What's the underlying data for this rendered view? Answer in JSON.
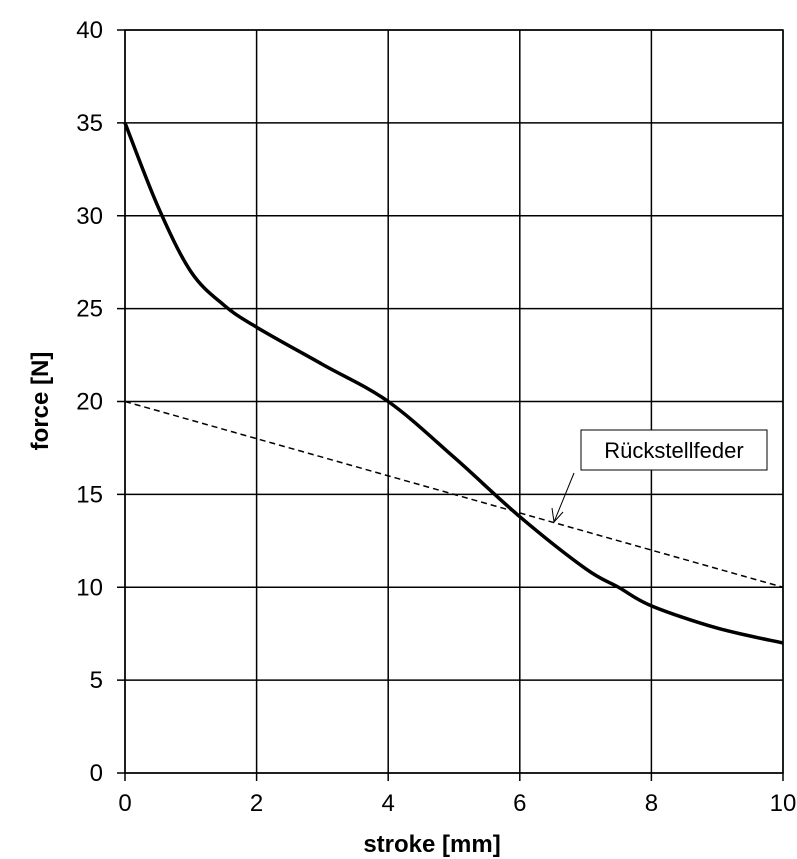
{
  "chart_data": {
    "type": "line",
    "title": "",
    "xlabel": "stroke [mm]",
    "ylabel": "force [N]",
    "xlim": [
      0,
      10
    ],
    "ylim": [
      0,
      40
    ],
    "x_ticks": [
      0,
      2,
      4,
      6,
      8,
      10
    ],
    "y_ticks": [
      0,
      5,
      10,
      15,
      20,
      25,
      30,
      35,
      40
    ],
    "x_tick_labels": [
      "0",
      "2",
      "4",
      "6",
      "8",
      "10"
    ],
    "y_tick_labels": [
      "0",
      "5",
      "10",
      "15",
      "20",
      "25",
      "30",
      "35",
      "40"
    ],
    "grid": true,
    "series": [
      {
        "style": "solid",
        "color": "#000000",
        "x": [
          0,
          0.5,
          1.0,
          1.5,
          2.0,
          3.0,
          4.0,
          5.0,
          6.0,
          7.0,
          7.5,
          8.0,
          9.0,
          10.0
        ],
        "y": [
          35,
          30.5,
          27,
          25.2,
          24,
          22,
          20,
          17,
          13.8,
          11,
          10,
          9,
          7.8,
          7
        ]
      },
      {
        "style": "dashed",
        "color": "#000000",
        "x": [
          0,
          10
        ],
        "y": [
          20,
          10
        ]
      }
    ],
    "annotations": [
      {
        "text": "Rückstellfeder",
        "target": {
          "x": 6.5,
          "y": 13.5
        }
      }
    ]
  }
}
